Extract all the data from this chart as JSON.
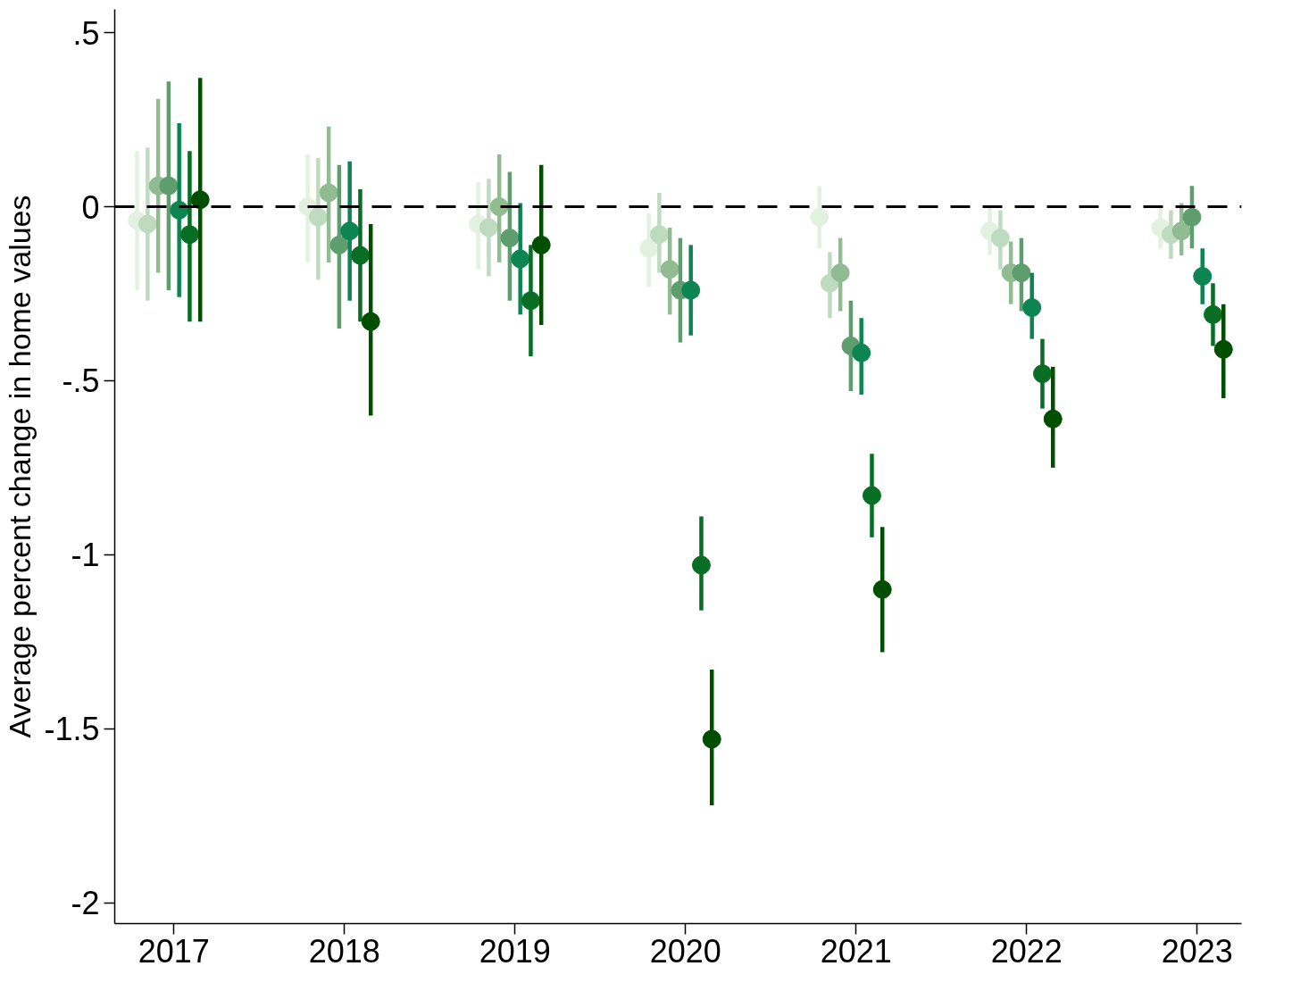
{
  "chart_data": {
    "type": "scatter",
    "ylabel": "Average percent change in home values",
    "categories": [
      "2017",
      "2018",
      "2019",
      "2020",
      "2021",
      "2022",
      "2023"
    ],
    "ylim": [
      -2.06,
      0.567
    ],
    "yticks": [
      {
        "value": 0.5,
        "label": ".5"
      },
      0,
      {
        "value": -0.5,
        "label": "-.5"
      },
      -1,
      {
        "value": -1.5,
        "label": "-1.5"
      },
      -2
    ],
    "marker": "circle",
    "grid": false,
    "ref_lines": [
      {
        "axis": "y",
        "value": 0,
        "color": "#000000",
        "line_style": "dashed"
      }
    ],
    "series": [
      {
        "color": "#e3f1e1",
        "values": [
          -0.04,
          0,
          -0.05,
          -0.12,
          -0.03,
          -0.07,
          -0.06
        ],
        "errors": [
          [
            -0.24,
            0.16
          ],
          [
            -0.16,
            0.15
          ],
          [
            -0.18,
            0.07
          ],
          [
            -0.23,
            -0.02
          ],
          [
            -0.12,
            0.06
          ],
          [
            -0.14,
            0
          ],
          [
            -0.12,
            0
          ]
        ]
      },
      {
        "color": "#bfdbbf",
        "values": [
          -0.05,
          -0.03,
          -0.06,
          -0.08,
          -0.22,
          -0.09,
          -0.08
        ],
        "errors": [
          [
            -0.27,
            0.17
          ],
          [
            -0.21,
            0.14
          ],
          [
            -0.2,
            0.08
          ],
          [
            -0.19,
            0.04
          ],
          [
            -0.32,
            -0.13
          ],
          [
            -0.18,
            -0.01
          ],
          [
            -0.15,
            -0.01
          ]
        ]
      },
      {
        "color": "#91bb91",
        "values": [
          0.06,
          0.04,
          0,
          -0.18,
          -0.19,
          -0.19,
          -0.07
        ],
        "errors": [
          [
            -0.19,
            0.31
          ],
          [
            -0.16,
            0.23
          ],
          [
            -0.16,
            0.15
          ],
          [
            -0.31,
            -0.06
          ],
          [
            -0.3,
            -0.09
          ],
          [
            -0.28,
            -0.1
          ],
          [
            -0.14,
            0.01
          ]
        ]
      },
      {
        "color": "#5e9e6e",
        "values": [
          0.06,
          -0.11,
          -0.09,
          -0.24,
          -0.4,
          -0.19,
          -0.03
        ],
        "errors": [
          [
            -0.24,
            0.36
          ],
          [
            -0.35,
            0.12
          ],
          [
            -0.27,
            0.1
          ],
          [
            -0.39,
            -0.09
          ],
          [
            -0.53,
            -0.27
          ],
          [
            -0.3,
            -0.09
          ],
          [
            -0.12,
            0.06
          ]
        ]
      },
      {
        "color": "#0c8552",
        "values": [
          -0.01,
          -0.07,
          -0.15,
          -0.24,
          -0.42,
          -0.29,
          -0.2
        ],
        "errors": [
          [
            -0.26,
            0.24
          ],
          [
            -0.27,
            0.13
          ],
          [
            -0.31,
            0.01
          ],
          [
            -0.37,
            -0.11
          ],
          [
            -0.54,
            -0.32
          ],
          [
            -0.38,
            -0.19
          ],
          [
            -0.28,
            -0.12
          ]
        ]
      },
      {
        "color": "#076e23",
        "values": [
          -0.08,
          -0.14,
          -0.27,
          -1.03,
          -0.83,
          -0.48,
          -0.31
        ],
        "errors": [
          [
            -0.33,
            0.16
          ],
          [
            -0.33,
            0.05
          ],
          [
            -0.43,
            -0.11
          ],
          [
            -1.16,
            -0.89
          ],
          [
            -0.95,
            -0.71
          ],
          [
            -0.58,
            -0.38
          ],
          [
            -0.4,
            -0.22
          ]
        ]
      },
      {
        "color": "#004f00",
        "values": [
          0.02,
          -0.33,
          -0.11,
          -1.53,
          -1.1,
          -0.61,
          -0.41
        ],
        "errors": [
          [
            -0.33,
            0.37
          ],
          [
            -0.6,
            -0.05
          ],
          [
            -0.34,
            0.12
          ],
          [
            -1.72,
            -1.33
          ],
          [
            -1.28,
            -0.92
          ],
          [
            -0.75,
            -0.46
          ],
          [
            -0.55,
            -0.28
          ]
        ]
      }
    ]
  }
}
